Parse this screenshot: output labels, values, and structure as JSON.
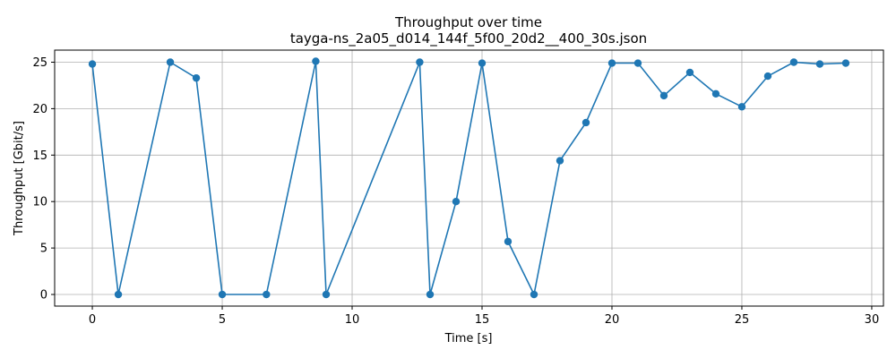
{
  "chart_data": {
    "type": "line",
    "title": "Throughput over time",
    "subtitle": "tayga-ns_2a05_d014_144f_5f00_20d2__400_30s.json",
    "xlabel": "Time [s]",
    "ylabel": "Throughput [Gbit/s]",
    "xlim": [
      -1.45,
      30.45
    ],
    "ylim": [
      -1.25,
      26.3
    ],
    "xticks": [
      0,
      5,
      10,
      15,
      20,
      25,
      30
    ],
    "yticks": [
      0,
      5,
      10,
      15,
      20,
      25
    ],
    "grid": true,
    "series": [
      {
        "color": "#1f77b4",
        "marker": "circle",
        "x": [
          0,
          1,
          3,
          4,
          5,
          6.7,
          8.6,
          9,
          12.6,
          13,
          14,
          15,
          16,
          17,
          18,
          19,
          20,
          21,
          22,
          23,
          24,
          25,
          26,
          27,
          28,
          29
        ],
        "y": [
          24.8,
          0,
          25.0,
          23.3,
          0,
          0,
          25.1,
          0,
          25.0,
          0,
          10.0,
          24.9,
          5.7,
          0,
          14.4,
          18.5,
          24.9,
          24.9,
          21.4,
          23.9,
          21.6,
          20.2,
          23.5,
          25.0,
          24.8,
          24.9
        ]
      }
    ]
  }
}
